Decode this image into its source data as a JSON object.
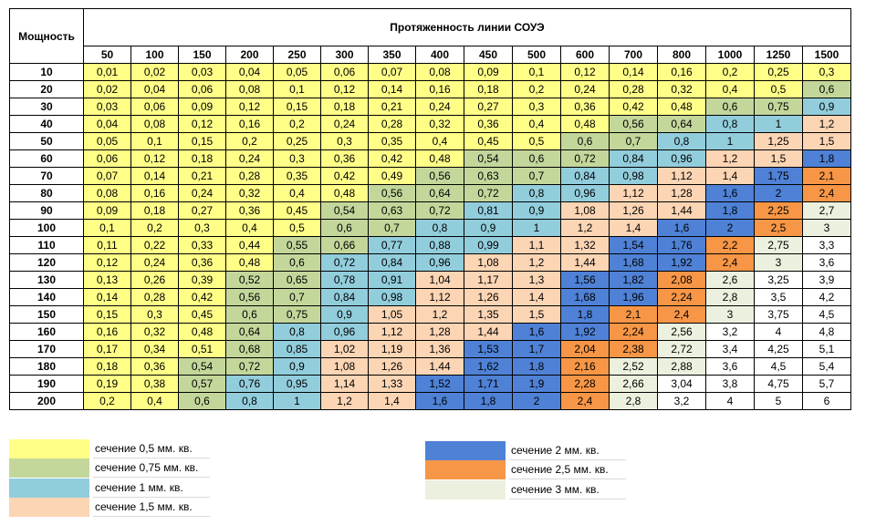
{
  "table": {
    "corner_label": "Мощность",
    "title": "Протяженность линии СОУЭ",
    "columns": [
      "50",
      "100",
      "150",
      "200",
      "250",
      "300",
      "350",
      "400",
      "450",
      "500",
      "600",
      "700",
      "800",
      "1000",
      "1250",
      "1500"
    ],
    "rows": [
      {
        "power": "10",
        "values": [
          "0,01",
          "0,02",
          "0,03",
          "0,04",
          "0,05",
          "0,06",
          "0,07",
          "0,08",
          "0,09",
          "0,1",
          "0,12",
          "0,14",
          "0,16",
          "0,2",
          "0,25",
          "0,3"
        ],
        "colors": [
          "c05",
          "c05",
          "c05",
          "c05",
          "c05",
          "c05",
          "c05",
          "c05",
          "c05",
          "c05",
          "c05",
          "c05",
          "c05",
          "c05",
          "c05",
          "c05"
        ]
      },
      {
        "power": "20",
        "values": [
          "0,02",
          "0,04",
          "0,06",
          "0,08",
          "0,1",
          "0,12",
          "0,14",
          "0,16",
          "0,18",
          "0,2",
          "0,24",
          "0,28",
          "0,32",
          "0,4",
          "0,5",
          "0,6"
        ],
        "colors": [
          "c05",
          "c05",
          "c05",
          "c05",
          "c05",
          "c05",
          "c05",
          "c05",
          "c05",
          "c05",
          "c05",
          "c05",
          "c05",
          "c05",
          "c05",
          "c075"
        ]
      },
      {
        "power": "30",
        "values": [
          "0,03",
          "0,06",
          "0,09",
          "0,12",
          "0,15",
          "0,18",
          "0,21",
          "0,24",
          "0,27",
          "0,3",
          "0,36",
          "0,42",
          "0,48",
          "0,6",
          "0,75",
          "0,9"
        ],
        "colors": [
          "c05",
          "c05",
          "c05",
          "c05",
          "c05",
          "c05",
          "c05",
          "c05",
          "c05",
          "c05",
          "c05",
          "c05",
          "c05",
          "c075",
          "c075",
          "c1"
        ]
      },
      {
        "power": "40",
        "values": [
          "0,04",
          "0,08",
          "0,12",
          "0,16",
          "0,2",
          "0,24",
          "0,28",
          "0,32",
          "0,36",
          "0,4",
          "0,48",
          "0,56",
          "0,64",
          "0,8",
          "1",
          "1,2"
        ],
        "colors": [
          "c05",
          "c05",
          "c05",
          "c05",
          "c05",
          "c05",
          "c05",
          "c05",
          "c05",
          "c05",
          "c05",
          "c075",
          "c075",
          "c1",
          "c1",
          "c15"
        ]
      },
      {
        "power": "50",
        "values": [
          "0,05",
          "0,1",
          "0,15",
          "0,2",
          "0,25",
          "0,3",
          "0,35",
          "0,4",
          "0,45",
          "0,5",
          "0,6",
          "0,7",
          "0,8",
          "1",
          "1,25",
          "1,5"
        ],
        "colors": [
          "c05",
          "c05",
          "c05",
          "c05",
          "c05",
          "c05",
          "c05",
          "c05",
          "c05",
          "c05",
          "c075",
          "c075",
          "c1",
          "c1",
          "c15",
          "c15"
        ]
      },
      {
        "power": "60",
        "values": [
          "0,06",
          "0,12",
          "0,18",
          "0,24",
          "0,3",
          "0,36",
          "0,42",
          "0,48",
          "0,54",
          "0,6",
          "0,72",
          "0,84",
          "0,96",
          "1,2",
          "1,5",
          "1,8"
        ],
        "colors": [
          "c05",
          "c05",
          "c05",
          "c05",
          "c05",
          "c05",
          "c05",
          "c05",
          "c075",
          "c075",
          "c075",
          "c1",
          "c1",
          "c15",
          "c15",
          "c2"
        ]
      },
      {
        "power": "70",
        "values": [
          "0,07",
          "0,14",
          "0,21",
          "0,28",
          "0,35",
          "0,42",
          "0,49",
          "0,56",
          "0,63",
          "0,7",
          "0,84",
          "0,98",
          "1,12",
          "1,4",
          "1,75",
          "2,1"
        ],
        "colors": [
          "c05",
          "c05",
          "c05",
          "c05",
          "c05",
          "c05",
          "c05",
          "c075",
          "c075",
          "c075",
          "c1",
          "c1",
          "c15",
          "c15",
          "c2",
          "c25"
        ]
      },
      {
        "power": "80",
        "values": [
          "0,08",
          "0,16",
          "0,24",
          "0,32",
          "0,4",
          "0,48",
          "0,56",
          "0,64",
          "0,72",
          "0,8",
          "0,96",
          "1,12",
          "1,28",
          "1,6",
          "2",
          "2,4"
        ],
        "colors": [
          "c05",
          "c05",
          "c05",
          "c05",
          "c05",
          "c05",
          "c075",
          "c075",
          "c075",
          "c1",
          "c1",
          "c15",
          "c15",
          "c2",
          "c2",
          "c25"
        ]
      },
      {
        "power": "90",
        "values": [
          "0,09",
          "0,18",
          "0,27",
          "0,36",
          "0,45",
          "0,54",
          "0,63",
          "0,72",
          "0,81",
          "0,9",
          "1,08",
          "1,26",
          "1,44",
          "1,8",
          "2,25",
          "2,7"
        ],
        "colors": [
          "c05",
          "c05",
          "c05",
          "c05",
          "c05",
          "c075",
          "c075",
          "c075",
          "c1",
          "c1",
          "c15",
          "c15",
          "c15",
          "c2",
          "c25",
          "c3"
        ]
      },
      {
        "power": "100",
        "values": [
          "0,1",
          "0,2",
          "0,3",
          "0,4",
          "0,5",
          "0,6",
          "0,7",
          "0,8",
          "0,9",
          "1",
          "1,2",
          "1,4",
          "1,6",
          "2",
          "2,5",
          "3"
        ],
        "colors": [
          "c05",
          "c05",
          "c05",
          "c05",
          "c05",
          "c075",
          "c075",
          "c1",
          "c1",
          "c1",
          "c15",
          "c15",
          "c2",
          "c2",
          "c25",
          "c3"
        ]
      },
      {
        "power": "110",
        "values": [
          "0,11",
          "0,22",
          "0,33",
          "0,44",
          "0,55",
          "0,66",
          "0,77",
          "0,88",
          "0,99",
          "1,1",
          "1,32",
          "1,54",
          "1,76",
          "2,2",
          "2,75",
          "3,3"
        ],
        "colors": [
          "c05",
          "c05",
          "c05",
          "c05",
          "c075",
          "c075",
          "c1",
          "c1",
          "c1",
          "c15",
          "c15",
          "c2",
          "c2",
          "c25",
          "c3",
          "cn"
        ]
      },
      {
        "power": "120",
        "values": [
          "0,12",
          "0,24",
          "0,36",
          "0,48",
          "0,6",
          "0,72",
          "0,84",
          "0,96",
          "1,08",
          "1,2",
          "1,44",
          "1,68",
          "1,92",
          "2,4",
          "3",
          "3,6"
        ],
        "colors": [
          "c05",
          "c05",
          "c05",
          "c05",
          "c075",
          "c1",
          "c1",
          "c1",
          "c15",
          "c15",
          "c15",
          "c2",
          "c2",
          "c25",
          "c3",
          "cn"
        ]
      },
      {
        "power": "130",
        "values": [
          "0,13",
          "0,26",
          "0,39",
          "0,52",
          "0,65",
          "0,78",
          "0,91",
          "1,04",
          "1,17",
          "1,3",
          "1,56",
          "1,82",
          "2,08",
          "2,6",
          "3,25",
          "3,9"
        ],
        "colors": [
          "c05",
          "c05",
          "c05",
          "c075",
          "c075",
          "c1",
          "c1",
          "c15",
          "c15",
          "c15",
          "c2",
          "c2",
          "c25",
          "c3",
          "cn",
          "cn"
        ]
      },
      {
        "power": "140",
        "values": [
          "0,14",
          "0,28",
          "0,42",
          "0,56",
          "0,7",
          "0,84",
          "0,98",
          "1,12",
          "1,26",
          "1,4",
          "1,68",
          "1,96",
          "2,24",
          "2,8",
          "3,5",
          "4,2"
        ],
        "colors": [
          "c05",
          "c05",
          "c05",
          "c075",
          "c075",
          "c1",
          "c1",
          "c15",
          "c15",
          "c15",
          "c2",
          "c2",
          "c25",
          "c3",
          "cn",
          "cn"
        ]
      },
      {
        "power": "150",
        "values": [
          "0,15",
          "0,3",
          "0,45",
          "0,6",
          "0,75",
          "0,9",
          "1,05",
          "1,2",
          "1,35",
          "1,5",
          "1,8",
          "2,1",
          "2,4",
          "3",
          "3,75",
          "4,5"
        ],
        "colors": [
          "c05",
          "c05",
          "c05",
          "c075",
          "c075",
          "c1",
          "c15",
          "c15",
          "c15",
          "c15",
          "c2",
          "c25",
          "c25",
          "c3",
          "cn",
          "cn"
        ]
      },
      {
        "power": "160",
        "values": [
          "0,16",
          "0,32",
          "0,48",
          "0,64",
          "0,8",
          "0,96",
          "1,12",
          "1,28",
          "1,44",
          "1,6",
          "1,92",
          "2,24",
          "2,56",
          "3,2",
          "4",
          "4,8"
        ],
        "colors": [
          "c05",
          "c05",
          "c05",
          "c075",
          "c1",
          "c1",
          "c15",
          "c15",
          "c15",
          "c2",
          "c2",
          "c25",
          "c3",
          "cn",
          "cn",
          "cn"
        ]
      },
      {
        "power": "170",
        "values": [
          "0,17",
          "0,34",
          "0,51",
          "0,68",
          "0,85",
          "1,02",
          "1,19",
          "1,36",
          "1,53",
          "1,7",
          "2,04",
          "2,38",
          "2,72",
          "3,4",
          "4,25",
          "5,1"
        ],
        "colors": [
          "c05",
          "c05",
          "c05",
          "c075",
          "c1",
          "c15",
          "c15",
          "c15",
          "c2",
          "c2",
          "c25",
          "c25",
          "c3",
          "cn",
          "cn",
          "cn"
        ]
      },
      {
        "power": "180",
        "values": [
          "0,18",
          "0,36",
          "0,54",
          "0,72",
          "0,9",
          "1,08",
          "1,26",
          "1,44",
          "1,62",
          "1,8",
          "2,16",
          "2,52",
          "2,88",
          "3,6",
          "4,5",
          "5,4"
        ],
        "colors": [
          "c05",
          "c05",
          "c075",
          "c075",
          "c1",
          "c15",
          "c15",
          "c15",
          "c2",
          "c2",
          "c25",
          "c3",
          "c3",
          "cn",
          "cn",
          "cn"
        ]
      },
      {
        "power": "190",
        "values": [
          "0,19",
          "0,38",
          "0,57",
          "0,76",
          "0,95",
          "1,14",
          "1,33",
          "1,52",
          "1,71",
          "1,9",
          "2,28",
          "2,66",
          "3,04",
          "3,8",
          "4,75",
          "5,7"
        ],
        "colors": [
          "c05",
          "c05",
          "c075",
          "c1",
          "c1",
          "c15",
          "c15",
          "c2",
          "c2",
          "c2",
          "c25",
          "c3",
          "cn",
          "cn",
          "cn",
          "cn"
        ]
      },
      {
        "power": "200",
        "values": [
          "0,2",
          "0,4",
          "0,6",
          "0,8",
          "1",
          "1,2",
          "1,4",
          "1,6",
          "1,8",
          "2",
          "2,4",
          "2,8",
          "3,2",
          "4",
          "5",
          "6"
        ],
        "colors": [
          "c05",
          "c05",
          "c075",
          "c1",
          "c1",
          "c15",
          "c15",
          "c2",
          "c2",
          "c2",
          "c25",
          "c3",
          "cn",
          "cn",
          "cn",
          "cn"
        ]
      }
    ]
  },
  "legend": [
    {
      "label": "сечение 0,5 мм. кв.",
      "color": "#ffff88"
    },
    {
      "label": "сечение 0,75 мм. кв.",
      "color": "#c4d79b"
    },
    {
      "label": "сечение 1 мм. кв.",
      "color": "#92cddc"
    },
    {
      "label": "сечение 1,5 мм. кв.",
      "color": "#fcd5b4"
    },
    {
      "label": "сечение 2 мм. кв.",
      "color": "#4f81d6"
    },
    {
      "label": "сечение 2,5 мм. кв.",
      "color": "#f79646"
    },
    {
      "label": "сечение 3 мм. кв.",
      "color": "#ebf1de"
    }
  ]
}
